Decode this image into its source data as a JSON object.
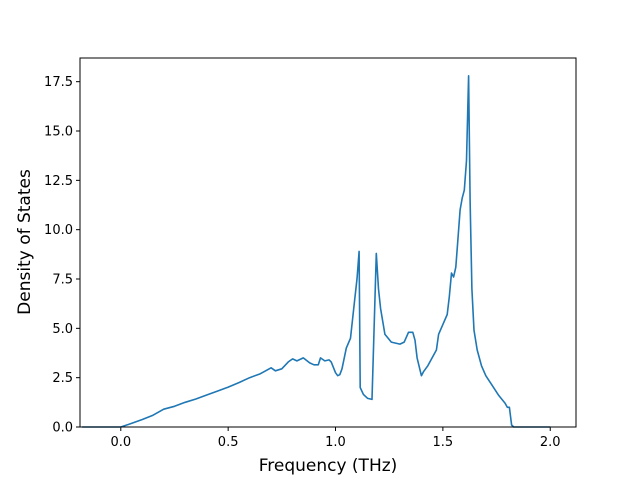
{
  "chart_data": {
    "type": "line",
    "title": "",
    "xlabel": "Frequency (THz)",
    "ylabel": "Density of States",
    "xlim": [
      -0.19,
      2.12
    ],
    "ylim": [
      0,
      18.7
    ],
    "xticks": [
      0.0,
      0.5,
      1.0,
      1.5,
      2.0
    ],
    "xtick_labels": [
      "0.0",
      "0.5",
      "1.0",
      "1.5",
      "2.0"
    ],
    "yticks": [
      0.0,
      2.5,
      5.0,
      7.5,
      10.0,
      12.5,
      15.0,
      17.5
    ],
    "ytick_labels": [
      "0.0",
      "2.5",
      "5.0",
      "7.5",
      "10.0",
      "12.5",
      "15.0",
      "17.5"
    ],
    "grid": false,
    "legend": "none",
    "series": [
      {
        "color": "#1f77b4",
        "x": [
          -0.18,
          0.0,
          0.05,
          0.1,
          0.15,
          0.2,
          0.25,
          0.3,
          0.35,
          0.4,
          0.45,
          0.5,
          0.55,
          0.6,
          0.65,
          0.7,
          0.72,
          0.75,
          0.78,
          0.8,
          0.82,
          0.85,
          0.88,
          0.9,
          0.92,
          0.93,
          0.95,
          0.97,
          0.98,
          1.0,
          1.01,
          1.02,
          1.03,
          1.05,
          1.07,
          1.09,
          1.1,
          1.11,
          1.115,
          1.13,
          1.15,
          1.17,
          1.19,
          1.2,
          1.21,
          1.23,
          1.26,
          1.3,
          1.32,
          1.34,
          1.36,
          1.37,
          1.38,
          1.4,
          1.41,
          1.43,
          1.45,
          1.47,
          1.48,
          1.5,
          1.52,
          1.53,
          1.54,
          1.55,
          1.56,
          1.57,
          1.58,
          1.59,
          1.6,
          1.61,
          1.62,
          1.627,
          1.635,
          1.645,
          1.66,
          1.68,
          1.7,
          1.73,
          1.76,
          1.79,
          1.8,
          1.81,
          1.82,
          1.83,
          1.9,
          2.0
        ],
        "y": [
          0.0,
          0.0,
          0.18,
          0.38,
          0.6,
          0.9,
          1.05,
          1.25,
          1.42,
          1.62,
          1.82,
          2.02,
          2.25,
          2.5,
          2.7,
          3.0,
          2.85,
          2.95,
          3.3,
          3.45,
          3.35,
          3.5,
          3.25,
          3.15,
          3.15,
          3.5,
          3.35,
          3.4,
          3.3,
          2.75,
          2.6,
          2.65,
          2.95,
          4.0,
          4.5,
          6.5,
          7.5,
          8.9,
          2.0,
          1.65,
          1.45,
          1.4,
          8.8,
          7.0,
          6.0,
          4.7,
          4.3,
          4.2,
          4.3,
          4.8,
          4.8,
          4.4,
          3.5,
          2.6,
          2.8,
          3.1,
          3.5,
          3.9,
          4.7,
          5.2,
          5.7,
          6.6,
          7.8,
          7.6,
          8.1,
          9.5,
          11.0,
          11.6,
          12.0,
          13.5,
          17.8,
          11.5,
          7.0,
          4.9,
          3.9,
          3.1,
          2.6,
          2.1,
          1.6,
          1.2,
          1.0,
          1.0,
          0.1,
          0.0,
          0.0,
          0.0
        ]
      }
    ]
  }
}
